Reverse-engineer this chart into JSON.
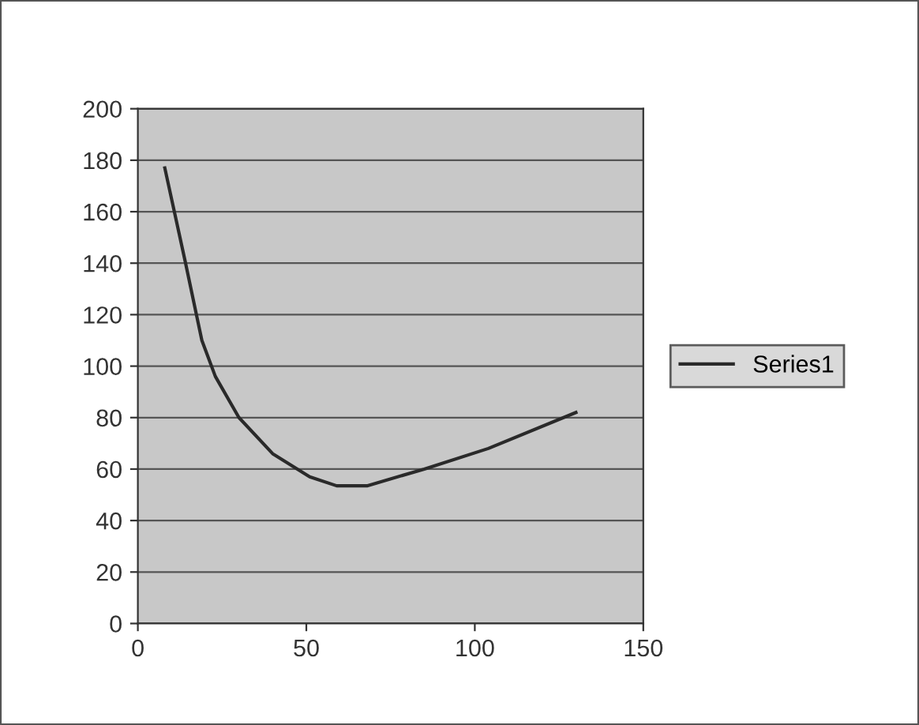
{
  "chart_data": {
    "type": "line",
    "x": [
      8,
      14,
      19,
      23,
      30,
      40,
      51,
      59,
      68,
      85,
      104,
      130
    ],
    "series": [
      {
        "name": "Series1",
        "color": "#2a2a2a",
        "values": [
          177,
          141,
          110,
          96,
          80,
          66,
          57,
          53.5,
          53.5,
          60,
          68,
          82
        ]
      }
    ],
    "xlim": [
      0,
      150
    ],
    "xticks": [
      0,
      50,
      100,
      150
    ],
    "ylim": [
      0,
      200
    ],
    "yticks": [
      0,
      20,
      40,
      60,
      80,
      100,
      120,
      140,
      160,
      180,
      200
    ],
    "grid": "y",
    "legend": "right",
    "marker": "none",
    "line_style": "solid"
  }
}
